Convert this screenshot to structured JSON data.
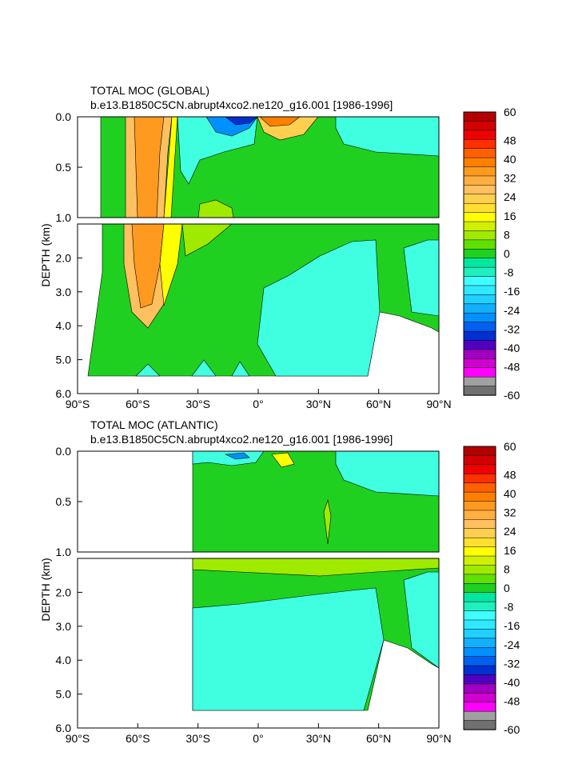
{
  "chart_data": [
    {
      "type": "contour",
      "title": "TOTAL MOC (GLOBAL)",
      "subtitle": "b.e13.B1850C5CN.abrupt4xco2.ne120_g16.001 [1986-1996]",
      "ylabel": "DEPTH (km)",
      "x_ticks": [
        "90°S",
        "60°S",
        "30°S",
        "0°",
        "30°N",
        "60°N",
        "90°N"
      ],
      "y_ticks_upper": [
        "0.0",
        "0.5",
        "1.0"
      ],
      "y_ticks_lower": [
        "2.0",
        "3.0",
        "4.0",
        "5.0",
        "6.0"
      ],
      "xlim": [
        -90,
        90
      ],
      "ylim_upper_km": [
        0,
        1.0
      ],
      "ylim_lower_km": [
        1.0,
        6.0
      ]
    },
    {
      "type": "contour",
      "title": "TOTAL MOC (ATLANTIC)",
      "subtitle": "b.e13.B1850C5CN.abrupt4xco2.ne120_g16.001 [1986-1996]",
      "ylabel": "DEPTH (km)",
      "x_ticks": [
        "90°S",
        "60°S",
        "30°S",
        "0°",
        "30°N",
        "60°N",
        "90°N"
      ],
      "y_ticks_upper": [
        "0.0",
        "0.5",
        "1.0"
      ],
      "y_ticks_lower": [
        "2.0",
        "3.0",
        "4.0",
        "5.0",
        "6.0"
      ],
      "xlim": [
        -90,
        90
      ],
      "ylim_upper_km": [
        0,
        1.0
      ],
      "ylim_lower_km": [
        1.0,
        6.0
      ]
    }
  ],
  "colorbar": {
    "levels": [
      60,
      56,
      52,
      48,
      44,
      40,
      36,
      32,
      28,
      24,
      20,
      16,
      12,
      8,
      4,
      0,
      -4,
      -8,
      -12,
      -16,
      -20,
      -24,
      -28,
      -32,
      -36,
      -40,
      -44,
      -48,
      -52,
      -56,
      -60
    ],
    "labels": [
      "60",
      "48",
      "40",
      "32",
      "24",
      "16",
      "8",
      "0",
      "-8",
      "-16",
      "-24",
      "-32",
      "-40",
      "-48",
      "-60"
    ],
    "colors": [
      "#b40000",
      "#d20000",
      "#f00000",
      "#ff3000",
      "#ff6000",
      "#ff8000",
      "#ff9a20",
      "#ffae40",
      "#ffc060",
      "#ffd050",
      "#ffe030",
      "#ffff00",
      "#d0f000",
      "#a0ea00",
      "#60e000",
      "#20d020",
      "#00e8a0",
      "#20f0c0",
      "#40ffff",
      "#30e8ff",
      "#20d0ff",
      "#10b0ff",
      "#0090ff",
      "#0060f0",
      "#0030d0",
      "#5000c0",
      "#a000c0",
      "#d000d0",
      "#ff00ff",
      "#a0a0a0",
      "#707070"
    ]
  },
  "palette": {
    "pos_dark": "#ff9a20",
    "pos_mid": "#ffb040",
    "pos_yellow": "#ffff00",
    "green_light": "#a0ea00",
    "green": "#20d020",
    "cyan": "#40ffe0",
    "neg_blue": "#0060f0",
    "neg_dark": "#0030d0"
  }
}
